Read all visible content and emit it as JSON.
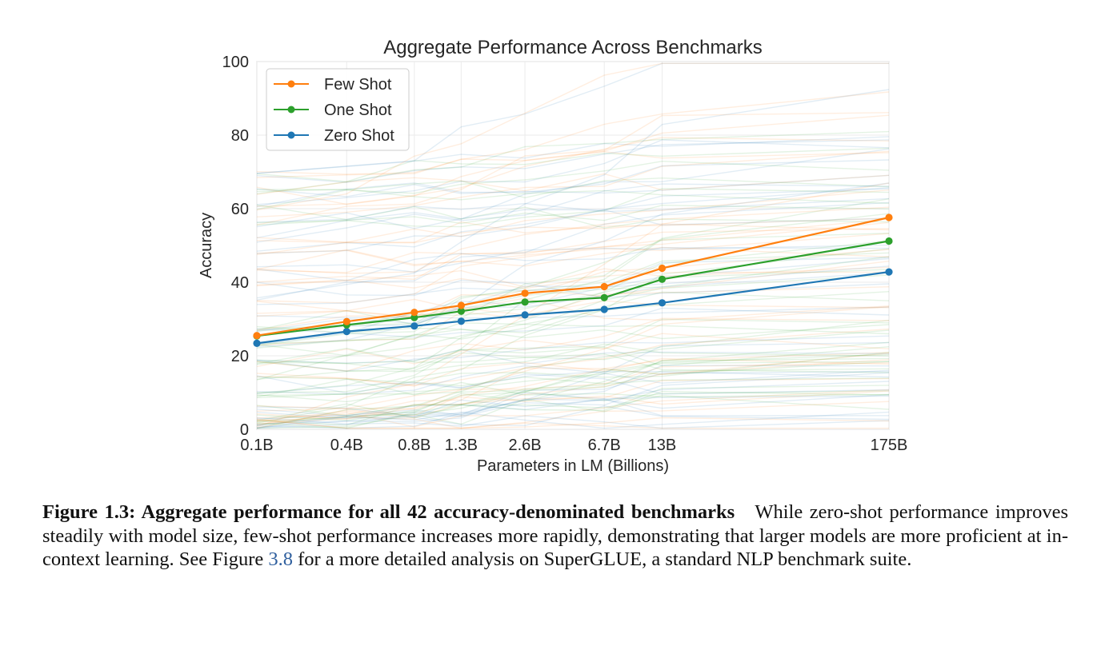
{
  "chart_data": {
    "type": "line",
    "title": "Aggregate Performance Across Benchmarks",
    "xlabel": "Parameters in LM (Billions)",
    "ylabel": "Accuracy",
    "x_scale": "log",
    "xlim": [
      0.125,
      175
    ],
    "ylim": [
      0,
      100
    ],
    "x": [
      0.125,
      0.35,
      0.76,
      1.3,
      2.7,
      6.7,
      13,
      175
    ],
    "x_tick_labels": [
      "0.1B",
      "0.4B",
      "0.8B",
      "1.3B",
      "2.6B",
      "6.7B",
      "13B",
      "175B"
    ],
    "y_ticks": [
      0,
      20,
      40,
      60,
      80,
      100
    ],
    "grid": true,
    "legend_position": "top-left",
    "series": [
      {
        "name": "Few Shot",
        "color": "#ff7f0e",
        "values": [
          25.5,
          29.3,
          31.8,
          33.7,
          37.0,
          38.8,
          43.8,
          57.6
        ]
      },
      {
        "name": "One Shot",
        "color": "#2ca02c",
        "values": [
          25.4,
          28.4,
          30.4,
          32.1,
          34.6,
          35.8,
          40.8,
          51.2
        ]
      },
      {
        "name": "Zero Shot",
        "color": "#1f77b4",
        "values": [
          23.4,
          26.6,
          28.1,
          29.4,
          31.1,
          32.6,
          34.4,
          42.8
        ]
      }
    ]
  },
  "caption": {
    "label": "Figure 1.3: Aggregate performance for all 42 accuracy-denominated benchmarks",
    "text_before_ref": "While zero-shot performance improves steadily with model size, few-shot performance increases more rapidly, demonstrating that larger models are more proficient at in-context learning. See Figure",
    "ref": "3.8",
    "text_after_ref": "for a more detailed analysis on SuperGLUE, a standard NLP benchmark suite."
  }
}
